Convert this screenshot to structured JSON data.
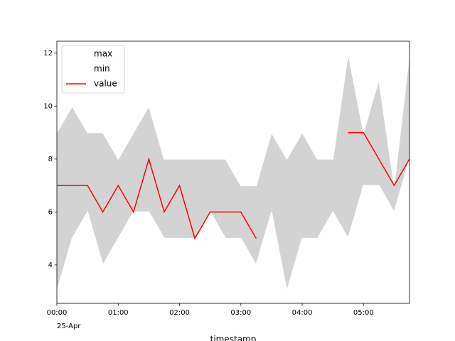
{
  "chart_data": {
    "type": "range-line",
    "x_label": "timestamp",
    "date_label": "25-Apr",
    "x": [
      "00:00",
      "00:15",
      "00:30",
      "00:45",
      "01:00",
      "01:15",
      "01:30",
      "01:45",
      "02:00",
      "02:15",
      "02:30",
      "02:45",
      "03:00",
      "03:15",
      "03:30",
      "03:45",
      "04:00",
      "04:15",
      "04:30",
      "04:45",
      "05:00",
      "05:15",
      "05:30",
      "05:45"
    ],
    "series": [
      {
        "name": "max",
        "color": "#ffffff",
        "values": [
          9,
          10,
          9,
          9,
          8,
          9,
          10,
          8,
          8,
          8,
          8,
          8,
          7,
          7,
          9,
          8,
          9,
          8,
          8,
          12,
          9,
          11,
          7,
          12
        ]
      },
      {
        "name": "min",
        "color": "#ffffff",
        "values": [
          3,
          5,
          6,
          4,
          5,
          6,
          6,
          5,
          5,
          5,
          6,
          5,
          5,
          4,
          6,
          3,
          5,
          5,
          6,
          5,
          7,
          7,
          6,
          8
        ]
      },
      {
        "name": "value",
        "color": "#ff0000",
        "values": [
          7,
          7,
          7,
          6,
          7,
          6,
          8,
          6,
          7,
          5,
          6,
          6,
          6,
          5,
          null,
          null,
          null,
          null,
          null,
          9,
          9,
          8,
          7,
          8
        ]
      }
    ],
    "fill_color": "#d3d3d3",
    "xlim": [
      "00:00",
      "05:45"
    ],
    "xticks": [
      "00:00",
      "01:00",
      "02:00",
      "03:00",
      "04:00",
      "05:00"
    ],
    "ylim": [
      2.55,
      12.45
    ],
    "yticks": [
      4,
      6,
      8,
      10,
      12
    ],
    "legend": "upper left"
  }
}
